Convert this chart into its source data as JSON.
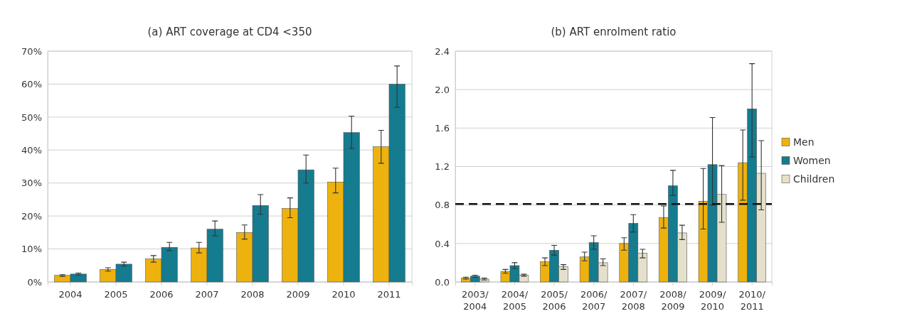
{
  "chart_data": [
    {
      "type": "bar",
      "title": "(a) ART coverage at CD4 <350",
      "categories": [
        "2004",
        "2005",
        "2006",
        "2007",
        "2008",
        "2009",
        "2010",
        "2011"
      ],
      "series": [
        {
          "color": "#eeb20e",
          "values": [
            2,
            3.8,
            7,
            10.3,
            15,
            22.3,
            30.3,
            41
          ],
          "errors": [
            [
              1.7,
              2.2
            ],
            [
              3.3,
              4.3
            ],
            [
              6,
              8
            ],
            [
              8.8,
              12
            ],
            [
              13,
              17.3
            ],
            [
              19.5,
              25.5
            ],
            [
              27,
              34.5
            ],
            [
              36,
              46
            ]
          ]
        },
        {
          "color": "#157b8f",
          "values": [
            2.4,
            5.4,
            10.5,
            16,
            23.2,
            34,
            45.3,
            60
          ],
          "errors": [
            [
              2.1,
              2.7
            ],
            [
              4.8,
              6
            ],
            [
              9.5,
              12
            ],
            [
              14,
              18.5
            ],
            [
              20.5,
              26.5
            ],
            [
              30,
              38.5
            ],
            [
              40.5,
              50.3
            ],
            [
              53,
              65.5
            ]
          ]
        }
      ],
      "ylim": [
        0,
        70
      ],
      "yticks": [
        {
          "value": 0,
          "label": "0%"
        },
        {
          "value": 10,
          "label": "10%"
        },
        {
          "value": 20,
          "label": "20%"
        },
        {
          "value": 30,
          "label": "30%"
        },
        {
          "value": 40,
          "label": "40%"
        },
        {
          "value": 50,
          "label": "50%"
        },
        {
          "value": 60,
          "label": "60%"
        },
        {
          "value": 70,
          "label": "70%"
        }
      ],
      "grid": "y",
      "legend": false
    },
    {
      "type": "bar",
      "title": "(b) ART enrolment ratio",
      "categories": [
        "2003/2004",
        "2004/2005",
        "2005/2006",
        "2006/2007",
        "2007/2008",
        "2008/2009",
        "2009/2010",
        "2010/2011"
      ],
      "series": [
        {
          "name": "Men",
          "color": "#eeb20e",
          "values": [
            0.04,
            0.11,
            0.21,
            0.26,
            0.4,
            0.67,
            0.84,
            1.24
          ],
          "errors": [
            [
              0.03,
              0.05
            ],
            [
              0.09,
              0.13
            ],
            [
              0.17,
              0.25
            ],
            [
              0.22,
              0.31
            ],
            [
              0.33,
              0.46
            ],
            [
              0.56,
              0.79
            ],
            [
              0.55,
              1.18
            ],
            [
              0.85,
              1.58
            ]
          ]
        },
        {
          "name": "Women",
          "color": "#157b8f",
          "values": [
            0.06,
            0.17,
            0.33,
            0.41,
            0.61,
            1.0,
            1.22,
            1.8
          ],
          "errors": [
            [
              0.05,
              0.07
            ],
            [
              0.14,
              0.2
            ],
            [
              0.28,
              0.38
            ],
            [
              0.34,
              0.48
            ],
            [
              0.52,
              0.7
            ],
            [
              0.9,
              1.16
            ],
            [
              0.8,
              1.71
            ],
            [
              1.3,
              2.27
            ]
          ]
        },
        {
          "name": "Children",
          "color": "#e4e0cb",
          "values": [
            0.03,
            0.07,
            0.16,
            0.2,
            0.3,
            0.51,
            0.91,
            1.13
          ],
          "errors": [
            [
              0.02,
              0.04
            ],
            [
              0.06,
              0.08
            ],
            [
              0.13,
              0.18
            ],
            [
              0.17,
              0.24
            ],
            [
              0.25,
              0.34
            ],
            [
              0.44,
              0.59
            ],
            [
              0.62,
              1.21
            ],
            [
              0.75,
              1.47
            ]
          ]
        }
      ],
      "ylim": [
        0,
        2.4
      ],
      "yticks": [
        {
          "value": 0,
          "label": "0.0"
        },
        {
          "value": 0.4,
          "label": "0.4"
        },
        {
          "value": 0.8,
          "label": "0.8"
        },
        {
          "value": 1.2,
          "label": "1.2"
        },
        {
          "value": 1.6,
          "label": "1.6"
        },
        {
          "value": 2.0,
          "label": "2.0"
        },
        {
          "value": 2.4,
          "label": "2.4"
        }
      ],
      "ref_lines": [
        {
          "axis": "y",
          "value": 0.81,
          "line_style": "dashed",
          "color": "#111111"
        }
      ],
      "grid": "y",
      "legend": "right"
    }
  ]
}
